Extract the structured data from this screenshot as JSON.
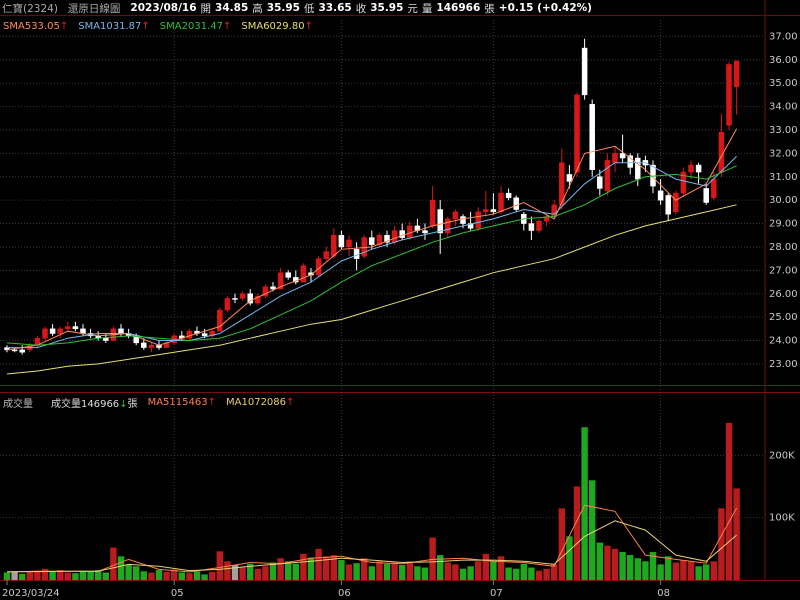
{
  "chart_data": {
    "type": "candlestick",
    "title": "仁寶(2324)",
    "subtitle": "還原日線圖",
    "header": {
      "date": "2023/08/16",
      "open_label": "開",
      "high_label": "高",
      "low_label": "低",
      "close_label": "收",
      "currency": "元",
      "volume_label": "量",
      "unit": "張",
      "change": "+0.15 (+0.42%)"
    },
    "colors": {
      "up": "#d81818",
      "down": "#ffffff",
      "flat": "#a0a0a0",
      "volume_up": "#b81c1c",
      "volume_down": "#1ea81e"
    },
    "grid": true,
    "categories": [
      "2023/03/24",
      null,
      null,
      null,
      null,
      null,
      null,
      null,
      null,
      null,
      null,
      null,
      null,
      null,
      null,
      null,
      null,
      null,
      null,
      null,
      null,
      null,
      "05",
      null,
      null,
      null,
      null,
      null,
      null,
      null,
      null,
      null,
      null,
      null,
      null,
      null,
      null,
      null,
      null,
      null,
      null,
      null,
      null,
      null,
      "06",
      null,
      null,
      null,
      null,
      null,
      null,
      null,
      null,
      null,
      null,
      null,
      null,
      null,
      null,
      null,
      null,
      null,
      null,
      null,
      "07",
      null,
      null,
      null,
      null,
      null,
      null,
      null,
      null,
      null,
      null,
      null,
      null,
      null,
      null,
      null,
      null,
      null,
      null,
      null,
      null,
      null,
      "08",
      null,
      null,
      null,
      null,
      null,
      null,
      null,
      null,
      null,
      null
    ],
    "ohlc": [
      [
        23.7,
        23.8,
        23.5,
        23.6
      ],
      [
        23.6,
        23.7,
        23.5,
        23.6
      ],
      [
        23.6,
        23.8,
        23.4,
        23.5
      ],
      [
        23.6,
        23.9,
        23.5,
        23.8
      ],
      [
        23.8,
        24.2,
        23.7,
        24.1
      ],
      [
        24.1,
        24.6,
        24.0,
        24.5
      ],
      [
        24.5,
        24.7,
        24.2,
        24.3
      ],
      [
        24.3,
        24.6,
        24.1,
        24.5
      ],
      [
        24.5,
        24.8,
        24.4,
        24.6
      ],
      [
        24.6,
        24.8,
        24.4,
        24.5
      ],
      [
        24.5,
        24.7,
        24.2,
        24.3
      ],
      [
        24.3,
        24.5,
        24.1,
        24.2
      ],
      [
        24.2,
        24.4,
        24.0,
        24.1
      ],
      [
        24.1,
        24.3,
        23.9,
        24.0
      ],
      [
        24.0,
        24.6,
        24.0,
        24.5
      ],
      [
        24.5,
        24.7,
        24.2,
        24.3
      ],
      [
        24.3,
        24.5,
        24.1,
        24.2
      ],
      [
        24.2,
        24.3,
        23.8,
        23.9
      ],
      [
        23.9,
        24.1,
        23.6,
        23.7
      ],
      [
        23.7,
        23.9,
        23.5,
        23.8
      ],
      [
        23.8,
        24.0,
        23.6,
        23.7
      ],
      [
        23.7,
        24.0,
        23.7,
        23.9
      ],
      [
        23.9,
        24.3,
        23.8,
        24.2
      ],
      [
        24.2,
        24.4,
        24.0,
        24.1
      ],
      [
        24.1,
        24.5,
        24.0,
        24.4
      ],
      [
        24.4,
        24.6,
        24.2,
        24.3
      ],
      [
        24.3,
        24.5,
        24.1,
        24.2
      ],
      [
        24.2,
        24.5,
        24.1,
        24.4
      ],
      [
        24.4,
        25.4,
        24.4,
        25.3
      ],
      [
        25.3,
        25.9,
        25.2,
        25.8
      ],
      [
        25.8,
        26.0,
        25.6,
        25.8
      ],
      [
        25.8,
        26.1,
        25.7,
        26.0
      ],
      [
        26.0,
        26.2,
        25.5,
        25.6
      ],
      [
        25.6,
        26.0,
        25.5,
        25.9
      ],
      [
        25.9,
        26.4,
        25.8,
        26.3
      ],
      [
        26.3,
        26.5,
        26.1,
        26.2
      ],
      [
        26.2,
        27.1,
        26.2,
        26.9
      ],
      [
        26.9,
        27.0,
        26.6,
        26.7
      ],
      [
        26.7,
        27.0,
        26.4,
        26.5
      ],
      [
        26.5,
        27.3,
        26.5,
        27.2
      ],
      [
        26.9,
        27.1,
        26.5,
        26.8
      ],
      [
        26.8,
        27.6,
        26.7,
        27.5
      ],
      [
        27.5,
        28.0,
        27.4,
        27.8
      ],
      [
        27.6,
        28.8,
        27.5,
        28.5
      ],
      [
        28.5,
        28.7,
        27.9,
        28.0
      ],
      [
        28.0,
        28.5,
        27.6,
        28.3
      ],
      [
        27.9,
        28.2,
        27.0,
        27.5
      ],
      [
        27.6,
        28.5,
        27.5,
        28.4
      ],
      [
        28.4,
        28.7,
        27.9,
        28.1
      ],
      [
        28.1,
        28.6,
        28.0,
        28.5
      ],
      [
        28.5,
        28.7,
        28.0,
        28.2
      ],
      [
        28.2,
        28.9,
        28.1,
        28.7
      ],
      [
        28.7,
        29.0,
        28.3,
        28.4
      ],
      [
        28.4,
        29.1,
        28.3,
        28.9
      ],
      [
        28.9,
        29.2,
        28.6,
        28.7
      ],
      [
        28.7,
        29.0,
        28.3,
        28.6
      ],
      [
        28.9,
        30.6,
        28.8,
        30.0
      ],
      [
        29.6,
        30.0,
        27.7,
        28.6
      ],
      [
        28.6,
        29.3,
        28.4,
        29.2
      ],
      [
        29.2,
        29.6,
        28.9,
        29.5
      ],
      [
        29.3,
        29.4,
        28.8,
        29.0
      ],
      [
        29.0,
        29.5,
        28.7,
        28.8
      ],
      [
        28.8,
        29.7,
        28.7,
        29.5
      ],
      [
        29.5,
        30.4,
        29.3,
        29.6
      ],
      [
        29.6,
        30.3,
        29.4,
        29.5
      ],
      [
        29.5,
        30.6,
        29.4,
        30.3
      ],
      [
        30.3,
        30.5,
        30.0,
        30.1
      ],
      [
        30.1,
        30.2,
        29.5,
        29.6
      ],
      [
        29.4,
        29.5,
        28.7,
        29.0
      ],
      [
        29.0,
        29.3,
        28.3,
        28.7
      ],
      [
        28.7,
        29.2,
        28.6,
        29.1
      ],
      [
        29.1,
        29.4,
        28.9,
        29.3
      ],
      [
        29.3,
        30.0,
        29.2,
        29.8
      ],
      [
        29.8,
        32.2,
        29.6,
        31.6
      ],
      [
        31.1,
        31.5,
        30.5,
        30.8
      ],
      [
        31.2,
        34.6,
        31.0,
        34.5
      ],
      [
        36.5,
        36.9,
        34.3,
        34.5
      ],
      [
        34.1,
        34.3,
        31.0,
        31.3
      ],
      [
        31.0,
        31.3,
        30.2,
        30.5
      ],
      [
        30.4,
        32.0,
        30.2,
        31.7
      ],
      [
        31.6,
        32.3,
        31.2,
        32.0
      ],
      [
        32.0,
        32.8,
        31.6,
        31.8
      ],
      [
        31.9,
        32.0,
        31.1,
        31.4
      ],
      [
        31.8,
        32.0,
        30.6,
        30.9
      ],
      [
        31.7,
        31.9,
        31.2,
        31.5
      ],
      [
        31.5,
        31.7,
        30.3,
        30.6
      ],
      [
        30.4,
        30.9,
        29.8,
        30.0
      ],
      [
        30.2,
        30.3,
        29.1,
        29.4
      ],
      [
        29.5,
        30.4,
        29.4,
        30.3
      ],
      [
        30.3,
        31.4,
        30.2,
        31.2
      ],
      [
        31.2,
        31.7,
        30.9,
        31.5
      ],
      [
        31.5,
        31.6,
        30.7,
        31.2
      ],
      [
        30.5,
        30.7,
        29.8,
        29.9
      ],
      [
        30.1,
        31.2,
        30.0,
        30.9
      ],
      [
        31.2,
        33.7,
        31.0,
        32.9
      ],
      [
        33.2,
        35.9,
        33.0,
        35.8
      ],
      [
        34.85,
        35.95,
        33.65,
        35.95
      ]
    ],
    "ylim": [
      22.1,
      37.7
    ],
    "yticks": [
      {
        "value": 23,
        "label": "23.00"
      },
      {
        "value": 24,
        "label": "24.00"
      },
      {
        "value": 25,
        "label": "25.00"
      },
      {
        "value": 26,
        "label": "26.00"
      },
      {
        "value": 27,
        "label": "27.00"
      },
      {
        "value": 28,
        "label": "28.00"
      },
      {
        "value": 29,
        "label": "29.00"
      },
      {
        "value": 30,
        "label": "30.00"
      },
      {
        "value": 31,
        "label": "31.00"
      },
      {
        "value": 32,
        "label": "32.00"
      },
      {
        "value": 33,
        "label": "33.00"
      },
      {
        "value": 34,
        "label": "34.00"
      },
      {
        "value": 35,
        "label": "35.00"
      },
      {
        "value": 36,
        "label": "36.00"
      },
      {
        "value": 37,
        "label": "37.00"
      }
    ],
    "ma_x": [
      0,
      4,
      8,
      12,
      16,
      20,
      24,
      28,
      32,
      36,
      40,
      44,
      48,
      52,
      56,
      60,
      64,
      68,
      72,
      76,
      80,
      84,
      88,
      92,
      96
    ],
    "overlays": [
      {
        "name": "SMA5",
        "color": "#ff8c5a",
        "arrow": "↑",
        "values": [
          23.6,
          23.8,
          24.4,
          24.2,
          24.3,
          23.8,
          24.2,
          24.6,
          25.7,
          26.3,
          26.8,
          27.9,
          28.0,
          28.5,
          28.9,
          29.2,
          29.4,
          29.9,
          29.2,
          32.0,
          32.3,
          31.3,
          30.0,
          30.7,
          33.05
        ]
      },
      {
        "name": "SMA10",
        "color": "#79b8f0",
        "arrow": "↑",
        "values": [
          23.7,
          23.7,
          24.1,
          24.3,
          24.3,
          24.0,
          24.0,
          24.3,
          25.1,
          25.9,
          26.5,
          27.4,
          27.9,
          28.3,
          28.6,
          28.9,
          29.2,
          29.6,
          29.4,
          30.7,
          31.6,
          31.6,
          30.9,
          30.6,
          31.87
        ]
      },
      {
        "name": "SMA20",
        "color": "#2fbf3a",
        "arrow": "↑",
        "values": [
          23.9,
          23.8,
          23.9,
          24.1,
          24.2,
          24.1,
          24.0,
          24.1,
          24.5,
          25.1,
          25.7,
          26.5,
          27.2,
          27.7,
          28.2,
          28.6,
          28.9,
          29.2,
          29.3,
          29.8,
          30.5,
          31.0,
          31.1,
          30.9,
          31.47
        ]
      },
      {
        "name": "SMA60",
        "color": "#e6df72",
        "arrow": "↑",
        "legend_label": "29.80",
        "values": [
          22.57,
          22.7,
          22.9,
          23.0,
          23.2,
          23.4,
          23.6,
          23.8,
          24.1,
          24.4,
          24.7,
          24.9,
          25.3,
          25.7,
          26.1,
          26.5,
          26.9,
          27.2,
          27.5,
          28.0,
          28.5,
          28.9,
          29.2,
          29.5,
          29.8
        ]
      }
    ],
    "volume": {
      "type": "bar",
      "title": "成交量",
      "name": "成交量",
      "arrow": "↓",
      "ylim": [
        0,
        300000
      ],
      "yticks": [
        {
          "value": 100000,
          "label": "100K"
        },
        {
          "value": 200000,
          "label": "200K"
        }
      ],
      "values": [
        12000,
        14000,
        10000,
        13000,
        15000,
        18000,
        14000,
        16000,
        12000,
        11000,
        15000,
        14000,
        16000,
        12000,
        52000,
        38000,
        25000,
        22000,
        14000,
        12000,
        16000,
        13000,
        17000,
        12000,
        11000,
        14000,
        9000,
        13000,
        46000,
        30000,
        24000,
        20000,
        26000,
        18000,
        22000,
        28000,
        35000,
        30000,
        26000,
        42000,
        36000,
        50000,
        38000,
        40000,
        32000,
        25000,
        27000,
        35000,
        22000,
        30000,
        26000,
        28000,
        24000,
        30000,
        22000,
        20000,
        68000,
        40000,
        28000,
        25000,
        18000,
        22000,
        30000,
        42000,
        30000,
        38000,
        20000,
        18000,
        26000,
        20000,
        15000,
        18000,
        25000,
        115000,
        70000,
        150000,
        245000,
        160000,
        60000,
        55000,
        50000,
        45000,
        40000,
        35000,
        30000,
        45000,
        25000,
        38000,
        28000,
        32000,
        30000,
        22000,
        25000,
        30000,
        115000,
        252000,
        146966
      ],
      "overlays": [
        {
          "name": "MA5",
          "color": "#ff7f50",
          "arrow": "↑",
          "values": [
            13000,
            14000,
            14000,
            14000,
            33000,
            17000,
            13000,
            20000,
            28000,
            26000,
            35000,
            38000,
            28000,
            26000,
            33000,
            35000,
            30000,
            28000,
            22000,
            120000,
            110000,
            40000,
            33000,
            27000,
            115463
          ]
        },
        {
          "name": "MA10",
          "color": "#e8d070",
          "arrow": "↑",
          "values": [
            13000,
            13500,
            14000,
            14000,
            25000,
            22000,
            15000,
            17000,
            22000,
            26000,
            30000,
            35000,
            32000,
            28000,
            29000,
            32000,
            32000,
            30000,
            25000,
            70000,
            95000,
            80000,
            40000,
            30000,
            72086
          ]
        }
      ]
    }
  }
}
